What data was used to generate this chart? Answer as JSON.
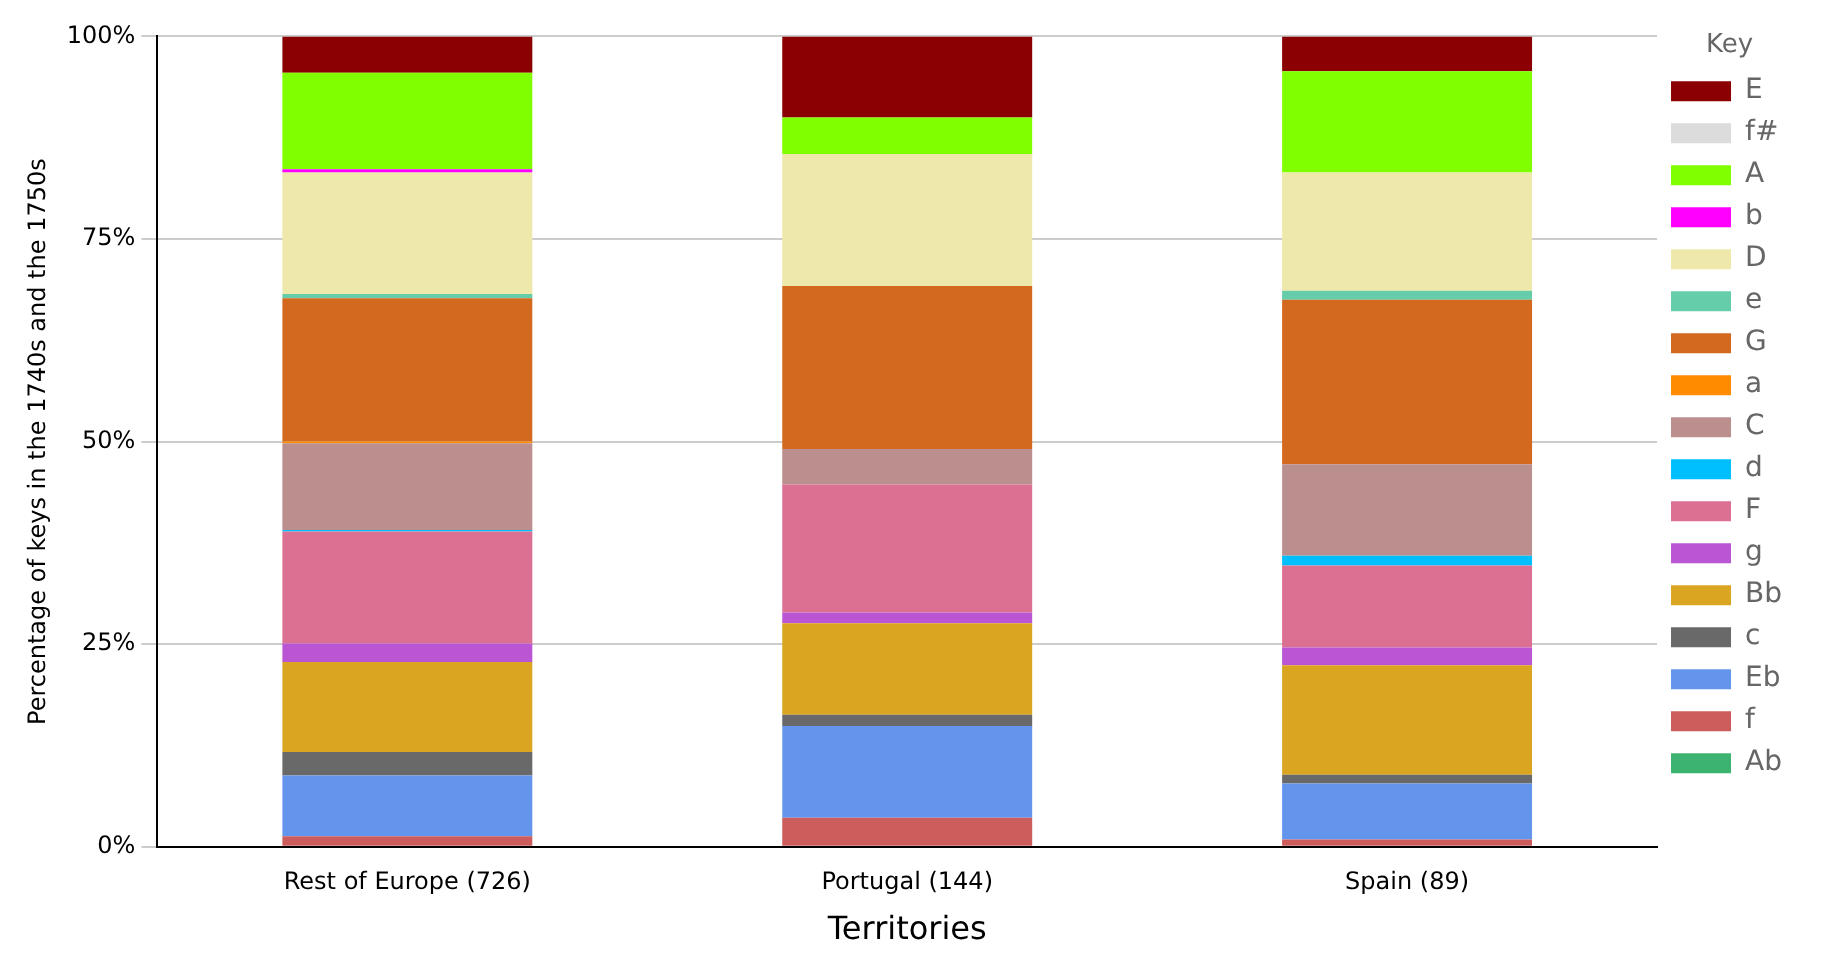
{
  "chart_data": {
    "type": "bar",
    "stacked": true,
    "xlabel": "Territories",
    "ylabel": "Percentage of keys in the 1740s and the 1750s",
    "legend_title": "Key",
    "legend": "right",
    "categories": [
      "Rest of Europe (726)",
      "Portugal (144)",
      "Spain (89)"
    ],
    "ylim": [
      0,
      100
    ],
    "yticks": [
      {
        "value": 0,
        "label": "0%"
      },
      {
        "value": 25,
        "label": "25%"
      },
      {
        "value": 50,
        "label": "50%"
      },
      {
        "value": 75,
        "label": "75%"
      },
      {
        "value": 100,
        "label": "100%"
      }
    ],
    "grid": "y",
    "series": [
      {
        "name": "Ab",
        "color": "#3cb371",
        "values": [
          0,
          0,
          0
        ]
      },
      {
        "name": "f",
        "color": "#cd5c5c",
        "values": [
          1.3,
          3.6,
          0.9
        ]
      },
      {
        "name": "Eb",
        "color": "#6495ed",
        "values": [
          7.5,
          11.3,
          6.9
        ]
      },
      {
        "name": "c",
        "color": "#696969",
        "values": [
          2.9,
          1.4,
          1.1
        ]
      },
      {
        "name": "Bb",
        "color": "#daa520",
        "values": [
          11.1,
          11.3,
          13.5
        ]
      },
      {
        "name": "g",
        "color": "#ba55d3",
        "values": [
          2.3,
          1.3,
          2.2
        ]
      },
      {
        "name": "F",
        "color": "#db7093",
        "values": [
          13.8,
          15.8,
          10.1
        ]
      },
      {
        "name": "d",
        "color": "#00bfff",
        "values": [
          0.2,
          0,
          1.2
        ]
      },
      {
        "name": "C",
        "color": "#bc8f8f",
        "values": [
          10.7,
          4.4,
          11.3
        ]
      },
      {
        "name": "a",
        "color": "#ff8c00",
        "values": [
          0.2,
          0,
          0
        ]
      },
      {
        "name": "G",
        "color": "#d2691e",
        "values": [
          17.7,
          20.1,
          20.3
        ]
      },
      {
        "name": "e",
        "color": "#66cdaa",
        "values": [
          0.5,
          0,
          1.1
        ]
      },
      {
        "name": "D",
        "color": "#eee8aa",
        "values": [
          15.0,
          16.3,
          14.6
        ]
      },
      {
        "name": "b",
        "color": "#ff00ff",
        "values": [
          0.4,
          0,
          0
        ]
      },
      {
        "name": "A",
        "color": "#7fff00",
        "values": [
          11.9,
          4.5,
          12.5
        ]
      },
      {
        "name": "f#",
        "color": "#dcdcdc",
        "values": [
          0,
          0,
          0
        ]
      },
      {
        "name": "E",
        "color": "#8b0000",
        "values": [
          4.5,
          10.0,
          4.3
        ]
      }
    ]
  }
}
